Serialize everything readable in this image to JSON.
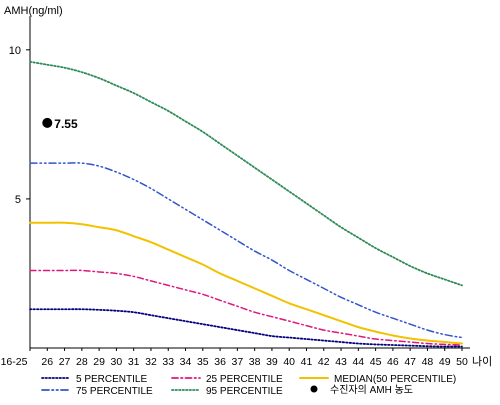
{
  "chart_data": {
    "type": "line",
    "ylabel": "AMH(ng/ml)",
    "xlabel": "나이",
    "ylim": [
      0,
      11
    ],
    "y_ticks": [
      5,
      10
    ],
    "x": [
      "16-25",
      "26",
      "27",
      "28",
      "29",
      "30",
      "31",
      "32",
      "33",
      "34",
      "35",
      "36",
      "37",
      "38",
      "39",
      "40",
      "41",
      "42",
      "43",
      "44",
      "45",
      "46",
      "47",
      "48",
      "49",
      "50"
    ],
    "grid": false,
    "legend_position": "bottom",
    "series": [
      {
        "name": "5 PERCENTILE",
        "style": "dotted",
        "color": "#000080",
        "values": [
          1.3,
          1.3,
          1.3,
          1.3,
          1.28,
          1.25,
          1.2,
          1.1,
          1.0,
          0.9,
          0.8,
          0.7,
          0.6,
          0.5,
          0.4,
          0.35,
          0.3,
          0.25,
          0.2,
          0.15,
          0.12,
          0.1,
          0.08,
          0.06,
          0.05,
          0.05
        ]
      },
      {
        "name": "25 PERCENTILE",
        "style": "dashdot",
        "color": "#e0157f",
        "values": [
          2.6,
          2.6,
          2.6,
          2.6,
          2.55,
          2.5,
          2.4,
          2.25,
          2.1,
          1.95,
          1.8,
          1.6,
          1.4,
          1.2,
          1.05,
          0.9,
          0.75,
          0.6,
          0.5,
          0.4,
          0.3,
          0.25,
          0.2,
          0.15,
          0.12,
          0.1
        ]
      },
      {
        "name": "MEDIAN(50 PERCENTILE)",
        "style": "solid",
        "color": "#f2c200",
        "values": [
          4.2,
          4.2,
          4.2,
          4.15,
          4.05,
          3.95,
          3.75,
          3.55,
          3.3,
          3.05,
          2.8,
          2.5,
          2.25,
          2.0,
          1.75,
          1.5,
          1.3,
          1.1,
          0.9,
          0.7,
          0.55,
          0.42,
          0.32,
          0.25,
          0.2,
          0.15
        ]
      },
      {
        "name": "75 PERCENTILE",
        "style": "dashdotdot",
        "color": "#3355cc",
        "values": [
          6.2,
          6.2,
          6.2,
          6.2,
          6.1,
          5.9,
          5.65,
          5.35,
          5.0,
          4.65,
          4.3,
          3.95,
          3.6,
          3.25,
          2.95,
          2.6,
          2.3,
          2.0,
          1.7,
          1.45,
          1.2,
          1.0,
          0.8,
          0.6,
          0.45,
          0.35
        ]
      },
      {
        "name": "95 PERCENTILE",
        "style": "dotted",
        "color": "#2e8b57",
        "values": [
          9.6,
          9.5,
          9.4,
          9.25,
          9.05,
          8.8,
          8.55,
          8.25,
          7.95,
          7.6,
          7.25,
          6.85,
          6.45,
          6.05,
          5.65,
          5.25,
          4.85,
          4.45,
          4.05,
          3.7,
          3.35,
          3.05,
          2.75,
          2.5,
          2.3,
          2.1
        ]
      }
    ],
    "patient": {
      "name": "수진자의 AMH 농도",
      "x": "26",
      "value": 7.55,
      "label": "7.55",
      "color": "#000000"
    }
  }
}
